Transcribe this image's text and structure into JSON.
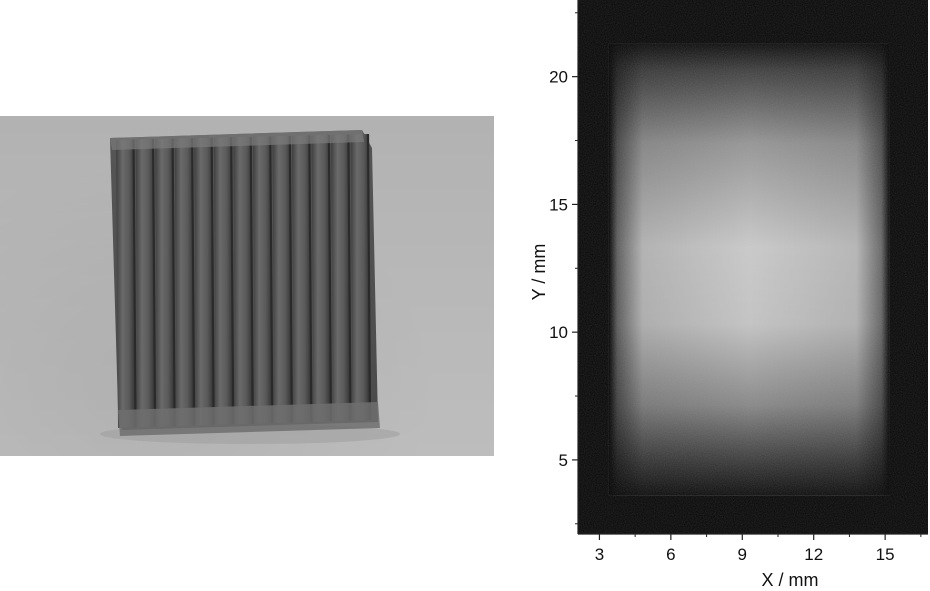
{
  "figure": {
    "left_panel": {
      "subject": "stacked-plate-sample-photo",
      "plate_count": 13
    },
    "right_panel": {
      "x_axis": {
        "label": "X / mm",
        "range": [
          2.1,
          16.8
        ],
        "ticks": [
          {
            "value": 3,
            "label": "3"
          },
          {
            "value": 6,
            "label": "6"
          },
          {
            "value": 9,
            "label": "9"
          },
          {
            "value": 12,
            "label": "12"
          },
          {
            "value": 15,
            "label": "15"
          }
        ]
      },
      "y_axis": {
        "label": "Y / mm",
        "range": [
          2.1,
          23.0
        ],
        "ticks": [
          {
            "value": 5,
            "label": "5"
          },
          {
            "value": 10,
            "label": "10"
          },
          {
            "value": 15,
            "label": "15"
          },
          {
            "value": 20,
            "label": "20"
          }
        ]
      },
      "bright_region_x_mm": [
        3.4,
        15.2
      ],
      "bright_region_y_mm": [
        3.6,
        21.3
      ],
      "colors": {
        "background": "#050505",
        "peak": "#cfcfcf"
      }
    }
  }
}
